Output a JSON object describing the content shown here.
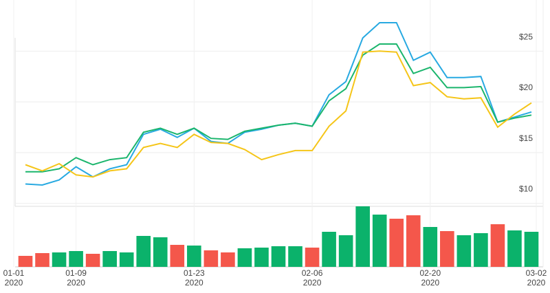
{
  "chart_data": {
    "type": "line",
    "categories": [
      "01-01\n2020",
      null,
      null,
      "01-09\n2020",
      null,
      null,
      null,
      null,
      null,
      null,
      "01-23\n2020",
      null,
      null,
      null,
      null,
      null,
      null,
      "02-06\n2020",
      null,
      null,
      null,
      null,
      null,
      null,
      "02-20\n2020",
      null,
      null,
      null,
      null,
      null,
      "03-02\n2020"
    ],
    "ylim": [
      9.7,
      29.7
    ],
    "yticks": [
      {
        "value": 10,
        "label": "$10"
      },
      {
        "value": 15,
        "label": "$15"
      },
      {
        "value": 20,
        "label": "$20"
      },
      {
        "value": 25,
        "label": "$25"
      }
    ],
    "grid": true,
    "series": [
      {
        "color": "#27a9e1",
        "values": [
          11.9,
          11.8,
          12.3,
          13.6,
          12.6,
          13.4,
          13.8,
          16.8,
          17.3,
          16.5,
          17.4,
          16.1,
          15.9,
          17.0,
          17.3,
          17.7,
          17.9,
          17.6,
          20.7,
          22.0,
          26.3,
          27.8,
          27.8,
          24.1,
          24.9,
          22.4,
          22.4,
          22.5,
          18.0,
          18.5,
          19.0
        ]
      },
      {
        "color": "#1ab56c",
        "values": [
          13.1,
          13.1,
          13.4,
          14.5,
          13.8,
          14.3,
          14.5,
          17.0,
          17.4,
          16.8,
          17.4,
          16.4,
          16.3,
          17.1,
          17.4,
          17.7,
          17.9,
          17.6,
          20.1,
          21.3,
          24.6,
          25.7,
          25.7,
          22.8,
          23.4,
          21.4,
          21.4,
          21.5,
          18.0,
          18.4,
          18.7
        ]
      },
      {
        "color": "#f5c518",
        "values": [
          13.8,
          13.2,
          13.9,
          12.8,
          12.6,
          13.2,
          13.4,
          15.5,
          15.9,
          15.5,
          16.8,
          16.0,
          15.9,
          15.3,
          14.3,
          14.8,
          15.2,
          15.2,
          17.6,
          19.1,
          24.9,
          25.0,
          24.9,
          21.6,
          21.9,
          20.5,
          20.3,
          20.4,
          17.5,
          18.8,
          19.9
        ]
      }
    ],
    "volume": {
      "type": "bar",
      "values": [
        16,
        20,
        21,
        23,
        19,
        23,
        21,
        45,
        43,
        32,
        31,
        24,
        21,
        27,
        28,
        30,
        30,
        28,
        51,
        46,
        88,
        76,
        70,
        75,
        58,
        52,
        46,
        49,
        62,
        53,
        51
      ],
      "colors": [
        "#f4574b",
        "#f4574b",
        "#0bb26b",
        "#0bb26b",
        "#f4574b",
        "#0bb26b",
        "#0bb26b",
        "#0bb26b",
        "#0bb26b",
        "#f4574b",
        "#0bb26b",
        "#f4574b",
        "#f4574b",
        "#0bb26b",
        "#0bb26b",
        "#0bb26b",
        "#0bb26b",
        "#f4574b",
        "#0bb26b",
        "#0bb26b",
        "#0bb26b",
        "#0bb26b",
        "#f4574b",
        "#f4574b",
        "#0bb26b",
        "#f4574b",
        "#0bb26b",
        "#0bb26b",
        "#f4574b",
        "#0bb26b",
        "#0bb26b"
      ]
    }
  }
}
